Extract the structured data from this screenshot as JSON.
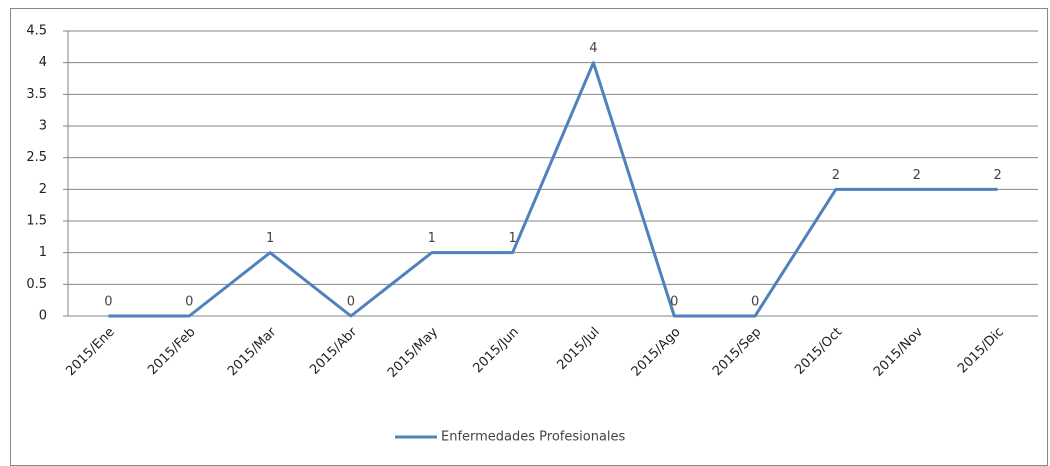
{
  "chart_data": {
    "type": "line",
    "categories": [
      "2015/Ene",
      "2015/Feb",
      "2015/Mar",
      "2015/Abr",
      "2015/May",
      "2015/Jun",
      "2015/Jul",
      "2015/Ago",
      "2015/Sep",
      "2015/Oct",
      "2015/Nov",
      "2015/Dic"
    ],
    "series": [
      {
        "name": "Enfermedades Profesionales",
        "color": "#4f81bd",
        "values": [
          0,
          0,
          1,
          0,
          1,
          1,
          4,
          0,
          0,
          2,
          2,
          2
        ]
      }
    ],
    "ylim": [
      0,
      4.5
    ],
    "yticks": [
      0,
      0.5,
      1,
      1.5,
      2,
      2.5,
      3,
      3.5,
      4,
      4.5
    ],
    "grid": true,
    "legend": "bottom",
    "data_labels": true
  }
}
